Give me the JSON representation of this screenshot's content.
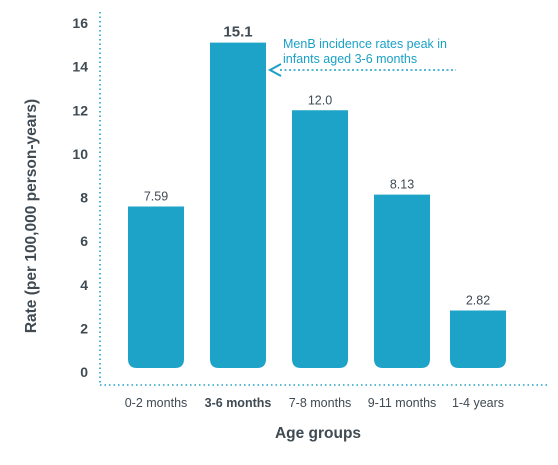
{
  "chart_data": {
    "type": "bar",
    "title": "",
    "xlabel": "Age groups",
    "ylabel": "Rate (per 100,000 person-years)",
    "ylim": [
      0,
      16
    ],
    "yticks": [
      0,
      2,
      4,
      6,
      8,
      10,
      12,
      14,
      16
    ],
    "ytick_labels": [
      "0",
      "2",
      "4",
      "6",
      "8",
      "10",
      "12",
      "14",
      "16"
    ],
    "categories": [
      "0-2 months",
      "3-6 months",
      "7-8 months",
      "9-11 months",
      "1-4 years"
    ],
    "values": [
      7.59,
      15.1,
      12.0,
      8.13,
      2.82
    ],
    "data_labels": [
      "7.59",
      "15.1",
      "12.0",
      "8.13",
      "2.82"
    ],
    "highlight_index": 1,
    "grid": false,
    "bar_color": "#1ea3c8",
    "axis_color": "#1ea3c8",
    "text_color": "#3f4a52",
    "annotation": {
      "lines": [
        "MenB incidence rates peak in",
        "infants aged 3-6 months"
      ],
      "target_index": 1,
      "color": "#1aa0c6"
    }
  }
}
